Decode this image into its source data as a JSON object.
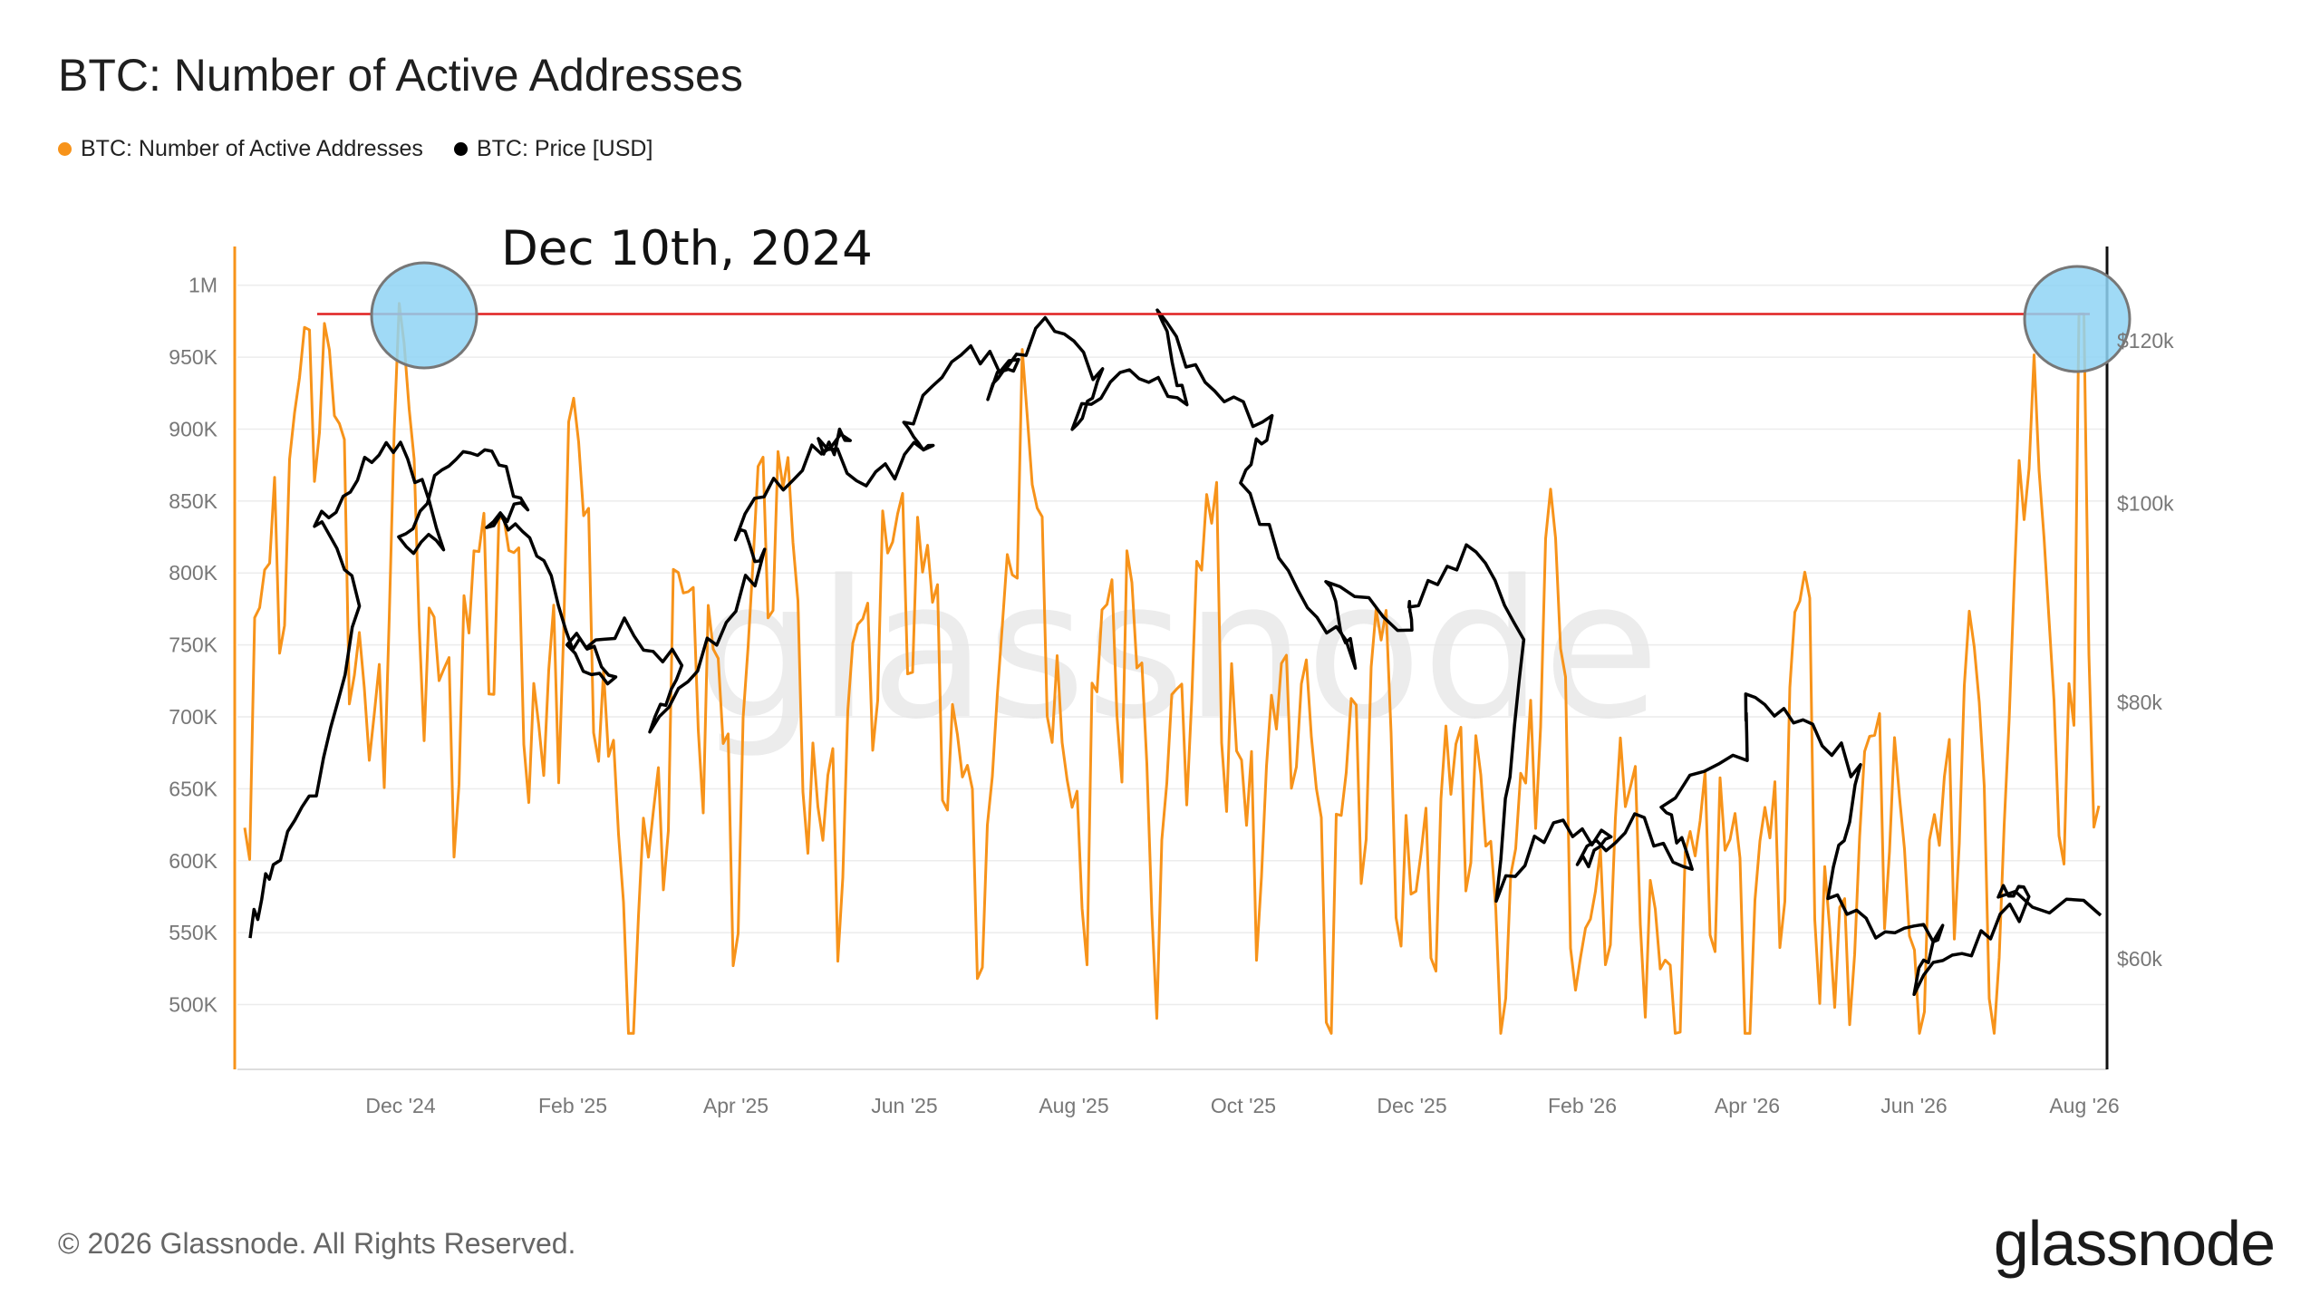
{
  "title": "BTC: Number of Active Addresses",
  "annotation": "Dec 10th, 2024",
  "footer": "© 2026 Glassnode. All Rights Reserved.",
  "brand": "glassnode",
  "watermark": "glassnode",
  "colors": {
    "addresses": "#f7931a",
    "price": "#000000",
    "reference": "#e02020",
    "highlight": "#8fd3f4"
  },
  "chart_data": {
    "type": "line",
    "title": "BTC: Number of Active Addresses",
    "legend": [
      {
        "name": "BTC: Number of Active Addresses",
        "color": "#f7931a"
      },
      {
        "name": "BTC: Price [USD]",
        "color": "#000000"
      }
    ],
    "x_ticks": [
      "Dec '24",
      "Feb '25",
      "Apr '25",
      "Jun '25",
      "Aug '25",
      "Oct '25",
      "Dec '25",
      "Feb '26",
      "Apr '26",
      "Jun '26",
      "Aug '26"
    ],
    "y_left": {
      "label": "",
      "ticks": [
        "500K",
        "550K",
        "600K",
        "650K",
        "700K",
        "750K",
        "800K",
        "850K",
        "900K",
        "950K",
        "1M"
      ],
      "range": [
        455000,
        1025000
      ]
    },
    "y_right": {
      "label": "",
      "ticks": [
        "$60k",
        "$80k",
        "$100k",
        "$120k"
      ],
      "scale": "log",
      "range": [
        53000,
        133000
      ]
    },
    "series": [
      {
        "name": "BTC: Number of Active Addresses",
        "axis": "left",
        "points": [
          [
            "Nov '24",
            700000
          ],
          [
            "Nov '24",
            1000000
          ],
          [
            "Nov '24",
            640000
          ],
          [
            "Dec '24",
            880000
          ],
          [
            "Dec '24",
            985000
          ],
          [
            "Dec '24",
            710000
          ],
          [
            "Jan '25",
            760000
          ],
          [
            "Jan '25",
            860000
          ],
          [
            "Jan '25",
            640000
          ],
          [
            "Feb '25",
            820000
          ],
          [
            "Feb '25",
            910000
          ],
          [
            "Feb '25",
            515000
          ],
          [
            "Mar '25",
            780000
          ],
          [
            "Mar '25",
            640000
          ],
          [
            "Mar '25",
            760000
          ],
          [
            "Apr '25",
            800000
          ],
          [
            "Apr '25",
            610000
          ],
          [
            "Apr '25",
            830000
          ],
          [
            "May '25",
            910000
          ],
          [
            "May '25",
            620000
          ],
          [
            "May '25",
            820000
          ],
          [
            "Jun '25",
            690000
          ],
          [
            "Jun '25",
            830000
          ],
          [
            "Jun '25",
            630000
          ],
          [
            "Jul '25",
            780000
          ],
          [
            "Jul '25",
            610000
          ],
          [
            "Jul '25",
            800000
          ],
          [
            "Aug '25",
            940000
          ],
          [
            "Aug '25",
            600000
          ],
          [
            "Aug '25",
            800000
          ],
          [
            "Sep '25",
            740000
          ],
          [
            "Sep '25",
            600000
          ],
          [
            "Sep '25",
            860000
          ],
          [
            "Oct '25",
            760000
          ],
          [
            "Oct '25",
            620000
          ],
          [
            "Oct '25",
            740000
          ],
          [
            "Nov '25",
            680000
          ],
          [
            "Nov '25",
            580000
          ],
          [
            "Nov '25",
            760000
          ],
          [
            "Dec '25",
            700000
          ],
          [
            "Dec '25",
            560000
          ],
          [
            "Dec '25",
            690000
          ],
          [
            "Jan '26",
            640000
          ],
          [
            "Jan '26",
            550000
          ],
          [
            "Jan '26",
            860000
          ],
          [
            "Feb '26",
            650000
          ],
          [
            "Feb '26",
            520000
          ],
          [
            "Feb '26",
            680000
          ],
          [
            "Mar '26",
            620000
          ],
          [
            "Mar '26",
            500000
          ],
          [
            "Mar '26",
            640000
          ],
          [
            "Apr '26",
            610000
          ],
          [
            "Apr '26",
            560000
          ],
          [
            "Apr '26",
            820000
          ],
          [
            "May '26",
            650000
          ],
          [
            "May '26",
            500000
          ],
          [
            "May '26",
            700000
          ],
          [
            "Jun '26",
            620000
          ],
          [
            "Jun '26",
            530000
          ],
          [
            "Jun '26",
            740000
          ],
          [
            "Jul '26",
            640000
          ],
          [
            "Jul '26",
            540000
          ],
          [
            "Jul '26",
            680000
          ],
          [
            "Aug '26",
            980000
          ],
          [
            "Aug '26",
            745000
          ]
        ]
      },
      {
        "name": "BTC: Price [USD]",
        "axis": "right",
        "points": [
          [
            "Nov '24",
            62000
          ],
          [
            "Nov '24",
            67000
          ],
          [
            "Nov '24",
            72000
          ],
          [
            "Nov '24",
            90000
          ],
          [
            "Dec '24",
            98000
          ],
          [
            "Dec '24",
            103000
          ],
          [
            "Dec '24",
            108000
          ],
          [
            "Dec '24",
            96000
          ],
          [
            "Jan '25",
            95000
          ],
          [
            "Jan '25",
            104000
          ],
          [
            "Jan '25",
            106000
          ],
          [
            "Jan '25",
            100000
          ],
          [
            "Feb '25",
            98000
          ],
          [
            "Feb '25",
            97000
          ],
          [
            "Feb '25",
            86000
          ],
          [
            "Feb '25",
            82000
          ],
          [
            "Mar '25",
            85000
          ],
          [
            "Mar '25",
            87000
          ],
          [
            "Mar '25",
            83000
          ],
          [
            "Apr '25",
            77000
          ],
          [
            "Apr '25",
            85000
          ],
          [
            "Apr '25",
            94000
          ],
          [
            "May '25",
            97000
          ],
          [
            "May '25",
            104000
          ],
          [
            "May '25",
            108000
          ],
          [
            "Jun '25",
            106000
          ],
          [
            "Jun '25",
            103000
          ],
          [
            "Jun '25",
            107000
          ],
          [
            "Jul '25",
            109000
          ],
          [
            "Jul '25",
            118000
          ],
          [
            "Jul '25",
            117000
          ],
          [
            "Aug '25",
            114000
          ],
          [
            "Aug '25",
            122000
          ],
          [
            "Aug '25",
            115000
          ],
          [
            "Sep '25",
            110000
          ],
          [
            "Sep '25",
            116000
          ],
          [
            "Sep '25",
            112000
          ],
          [
            "Oct '25",
            124000
          ],
          [
            "Oct '25",
            112000
          ],
          [
            "Oct '25",
            110000
          ],
          [
            "Nov '25",
            102000
          ],
          [
            "Nov '25",
            91000
          ],
          [
            "Nov '25",
            84000
          ],
          [
            "Dec '25",
            91000
          ],
          [
            "Dec '25",
            87000
          ],
          [
            "Jan '26",
            89000
          ],
          [
            "Jan '26",
            95000
          ],
          [
            "Jan '26",
            87000
          ],
          [
            "Feb '26",
            64000
          ],
          [
            "Feb '26",
            70000
          ],
          [
            "Feb '26",
            68000
          ],
          [
            "Mar '26",
            67000
          ],
          [
            "Mar '26",
            70000
          ],
          [
            "Mar '26",
            66000
          ],
          [
            "Apr '26",
            72000
          ],
          [
            "Apr '26",
            76000
          ],
          [
            "May '26",
            80000
          ],
          [
            "May '26",
            78000
          ],
          [
            "May '26",
            74000
          ],
          [
            "Jun '26",
            65000
          ],
          [
            "Jun '26",
            61000
          ],
          [
            "Jun '26",
            62000
          ],
          [
            "Jul '26",
            58000
          ],
          [
            "Jul '26",
            61000
          ],
          [
            "Jul '26",
            64000
          ],
          [
            "Aug '26",
            65000
          ],
          [
            "Aug '26",
            63000
          ]
        ]
      }
    ],
    "reference_line": {
      "axis": "left",
      "value": 980000,
      "from": "Nov '24",
      "to": "Aug '26",
      "color": "#e02020"
    },
    "highlights": [
      {
        "at": "Dec '24",
        "label": "Dec 10th, 2024"
      },
      {
        "at": "Aug '26"
      }
    ],
    "grid": true,
    "legend_position": "top-left"
  }
}
